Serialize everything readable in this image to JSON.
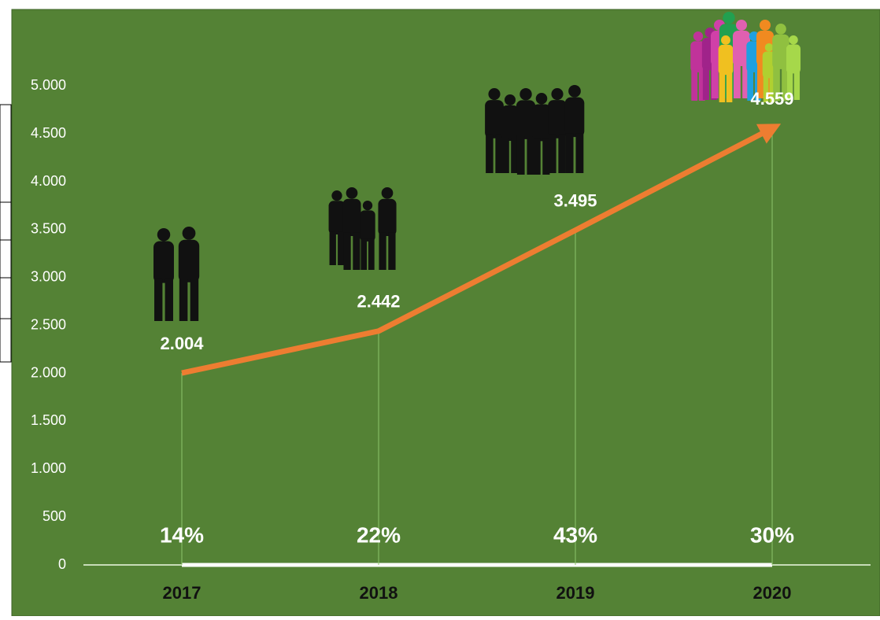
{
  "chart_data": {
    "type": "line",
    "categories": [
      "2017",
      "2018",
      "2019",
      "2020"
    ],
    "values": [
      2004,
      2442,
      3495,
      4559
    ],
    "value_labels": [
      "2.004",
      "2.442",
      "3.495",
      "4.559"
    ],
    "annotations": [
      "14%",
      "22%",
      "43%",
      "30%"
    ],
    "color": "#ed7d31",
    "ylim": [
      0,
      5800
    ],
    "yticks": [
      0,
      500,
      {
        "value": 1000,
        "label": "1.000"
      },
      {
        "value": 1500,
        "label": "1.500"
      },
      {
        "value": 2000,
        "label": "2.000"
      },
      {
        "value": 2500,
        "label": "2.500"
      },
      {
        "value": 3000,
        "label": "3.000"
      },
      {
        "value": 3500,
        "label": "3.500"
      },
      {
        "value": 4000,
        "label": "4.000"
      },
      {
        "value": 4500,
        "label": "4.500"
      },
      {
        "value": 5000,
        "label": "5.000"
      }
    ],
    "grid": false
  }
}
